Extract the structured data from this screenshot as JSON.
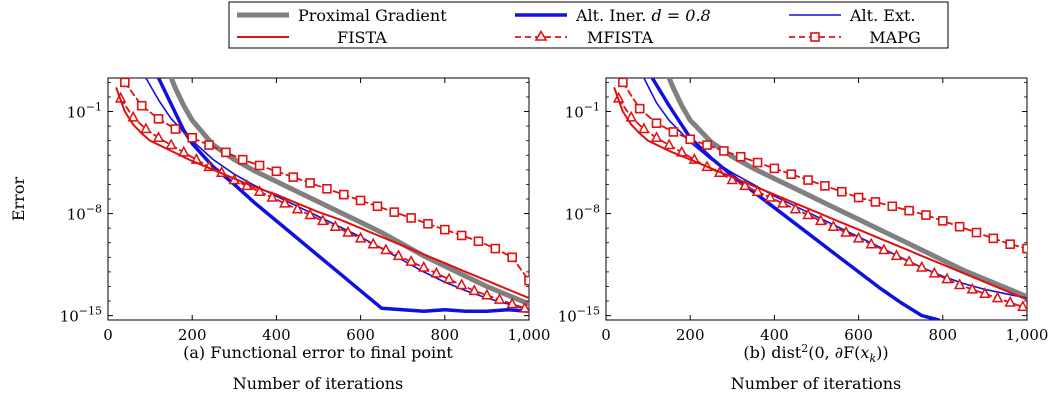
{
  "legend": [
    {
      "name": "Proximal Gradient",
      "color": "#808080",
      "width": 5,
      "dash": "",
      "marker": ""
    },
    {
      "name": "Alt. Iner. d = 0.8",
      "color": "#1010e0",
      "width": 3.5,
      "dash": "",
      "marker": ""
    },
    {
      "name": "Alt. Ext.",
      "color": "#1010e0",
      "width": 1.6,
      "dash": "",
      "marker": ""
    },
    {
      "name": "FISTA",
      "color": "#e01010",
      "width": 2,
      "dash": "",
      "marker": ""
    },
    {
      "name": "MFISTA",
      "color": "#e01010",
      "width": 1.8,
      "dash": "6 4",
      "marker": "triangle"
    },
    {
      "name": "MAPG",
      "color": "#e01010",
      "width": 1.8,
      "dash": "6 4",
      "marker": "square"
    }
  ],
  "legend_inline": {
    "iner_prefix": "Alt. Iner. ",
    "iner_param": "d = 0.8"
  },
  "chart_data": [
    {
      "type": "line",
      "caption": "(a) Functional error to final point",
      "xlabel": "Number of iterations",
      "ylabel": "Error",
      "yscale": "log",
      "xlim": [
        0,
        1000
      ],
      "ylim_exp": [
        -15.3,
        1.3
      ],
      "xticks": [
        0,
        200,
        400,
        600,
        800,
        1000
      ],
      "xtick_labels": [
        "0",
        "200",
        "400",
        "600",
        "800",
        "1,000"
      ],
      "yticks_exp": [
        -1,
        -8,
        -15
      ],
      "ytick_labels": [
        "10",
        "10",
        "10"
      ],
      "ytick_sups": [
        "−1",
        "−8",
        "−15"
      ],
      "series": [
        {
          "name": "Proximal Gradient",
          "x": [
            150,
            160,
            170,
            180,
            200,
            250,
            300,
            350,
            400,
            450,
            500,
            550,
            600,
            650,
            700,
            750,
            800,
            850,
            900,
            950,
            1000
          ],
          "y_exp": [
            1.3,
            0.6,
            0,
            -0.6,
            -1.6,
            -3.3,
            -4.3,
            -5.1,
            -5.8,
            -6.5,
            -7.2,
            -7.9,
            -8.6,
            -9.3,
            -10.1,
            -10.9,
            -11.6,
            -12.3,
            -13.0,
            -13.6,
            -14.2
          ]
        },
        {
          "name": "Alt. Iner. d = 0.8",
          "x": [
            120,
            150,
            180,
            200,
            250,
            300,
            350,
            400,
            450,
            500,
            550,
            600,
            650,
            700,
            750,
            800,
            850,
            900,
            950,
            1000
          ],
          "y_exp": [
            1.3,
            -0.5,
            -2.3,
            -3.2,
            -4.8,
            -6.0,
            -7.3,
            -8.5,
            -9.7,
            -10.9,
            -12.1,
            -13.3,
            -14.5,
            -14.6,
            -14.7,
            -14.6,
            -14.7,
            -14.7,
            -14.6,
            -14.7
          ]
        },
        {
          "name": "Alt. Ext.",
          "x": [
            90,
            120,
            150,
            200,
            250,
            300,
            350,
            400,
            450,
            500,
            550,
            600,
            650,
            700,
            750,
            800,
            850,
            900,
            950,
            1000
          ],
          "y_exp": [
            1.3,
            -0.2,
            -1.5,
            -3.0,
            -4.3,
            -5.3,
            -6.1,
            -6.8,
            -7.5,
            -8.2,
            -8.9,
            -9.6,
            -10.4,
            -11.2,
            -12.0,
            -12.7,
            -13.3,
            -13.8,
            -14.2,
            -14.6
          ]
        },
        {
          "name": "FISTA",
          "x": [
            20,
            40,
            60,
            80,
            100,
            150,
            200,
            250,
            300,
            350,
            400,
            450,
            500,
            550,
            600,
            650,
            700,
            750,
            800,
            850,
            900,
            950,
            1000
          ],
          "y_exp": [
            0.6,
            -1.0,
            -1.9,
            -2.5,
            -3.0,
            -3.7,
            -4.4,
            -5.0,
            -5.6,
            -6.2,
            -6.7,
            -7.3,
            -7.9,
            -8.4,
            -9.0,
            -9.6,
            -10.2,
            -10.8,
            -11.4,
            -12.0,
            -12.6,
            -13.2,
            -13.8
          ]
        },
        {
          "name": "MFISTA",
          "x": [
            30,
            60,
            90,
            120,
            150,
            180,
            210,
            240,
            270,
            300,
            330,
            360,
            390,
            420,
            450,
            480,
            510,
            540,
            570,
            600,
            630,
            660,
            690,
            720,
            750,
            780,
            810,
            840,
            870,
            900,
            930,
            960,
            990
          ],
          "y_exp": [
            -0.1,
            -1.4,
            -2.2,
            -2.8,
            -3.3,
            -3.8,
            -4.3,
            -4.8,
            -5.2,
            -5.7,
            -6.1,
            -6.5,
            -6.9,
            -7.3,
            -7.7,
            -8.1,
            -8.5,
            -8.9,
            -9.3,
            -9.7,
            -10.1,
            -10.5,
            -10.9,
            -11.3,
            -11.7,
            -12.1,
            -12.5,
            -12.9,
            -13.3,
            -13.6,
            -13.9,
            -14.2,
            -14.5
          ]
        },
        {
          "name": "MAPG",
          "x": [
            40,
            80,
            120,
            160,
            200,
            240,
            280,
            320,
            360,
            400,
            440,
            480,
            520,
            560,
            600,
            640,
            680,
            720,
            760,
            800,
            840,
            880,
            920,
            960,
            1000
          ],
          "y_exp": [
            1.0,
            -0.6,
            -1.5,
            -2.2,
            -2.8,
            -3.3,
            -3.8,
            -4.3,
            -4.7,
            -5.1,
            -5.5,
            -5.9,
            -6.3,
            -6.7,
            -7.1,
            -7.5,
            -7.9,
            -8.3,
            -8.7,
            -9.1,
            -9.5,
            -9.9,
            -10.4,
            -11.0,
            -12.6
          ]
        }
      ]
    },
    {
      "type": "line",
      "caption": "(b) dist²(0, ∂F(x_k))",
      "caption_parts": {
        "pre": "(b) dist",
        "sup": "2",
        "mid": "(0, ∂F(",
        "var": "x",
        "sub": "k",
        "post": "))"
      },
      "xlabel": "Number of iterations",
      "ylabel": "",
      "yscale": "log",
      "xlim": [
        0,
        1000
      ],
      "ylim_exp": [
        -15.3,
        1.3
      ],
      "xticks": [
        0,
        200,
        400,
        600,
        800,
        1000
      ],
      "xtick_labels": [
        "0",
        "200",
        "400",
        "600",
        "800",
        "1,000"
      ],
      "yticks_exp": [
        -1,
        -8,
        -15
      ],
      "ytick_labels": [
        "10",
        "10",
        "10"
      ],
      "ytick_sups": [
        "−1",
        "−8",
        "−15"
      ],
      "series": [
        {
          "name": "Proximal Gradient",
          "x": [
            150,
            160,
            170,
            180,
            200,
            250,
            300,
            350,
            400,
            450,
            500,
            550,
            600,
            650,
            700,
            750,
            800,
            850,
            900,
            950,
            1000
          ],
          "y_exp": [
            1.3,
            0.6,
            0,
            -0.6,
            -1.6,
            -3.1,
            -4.1,
            -4.9,
            -5.6,
            -6.3,
            -7.0,
            -7.7,
            -8.4,
            -9.1,
            -9.8,
            -10.5,
            -11.2,
            -11.9,
            -12.5,
            -13.1,
            -13.7
          ]
        },
        {
          "name": "Alt. Iner. d = 0.8",
          "x": [
            110,
            150,
            200,
            250,
            300,
            350,
            400,
            450,
            500,
            550,
            600,
            650,
            700,
            750,
            790
          ],
          "y_exp": [
            1.3,
            -0.6,
            -2.8,
            -4.2,
            -5.4,
            -6.5,
            -7.6,
            -8.7,
            -9.8,
            -10.9,
            -12.0,
            -13.1,
            -14.1,
            -15.0,
            -15.3
          ]
        },
        {
          "name": "Alt. Ext.",
          "x": [
            90,
            120,
            150,
            200,
            250,
            300,
            350,
            400,
            450,
            500,
            550,
            600,
            650,
            700,
            750,
            800,
            850,
            900,
            950,
            1000
          ],
          "y_exp": [
            1.3,
            -0.4,
            -1.6,
            -3.1,
            -4.3,
            -5.2,
            -6.0,
            -6.8,
            -7.5,
            -8.2,
            -8.9,
            -9.6,
            -10.3,
            -11.0,
            -11.7,
            -12.3,
            -12.8,
            -13.2,
            -13.5,
            -13.8
          ]
        },
        {
          "name": "FISTA",
          "x": [
            20,
            40,
            60,
            80,
            100,
            150,
            200,
            250,
            300,
            350,
            400,
            450,
            500,
            550,
            600,
            650,
            700,
            750,
            800,
            850,
            900,
            950,
            1000
          ],
          "y_exp": [
            0.6,
            -1.0,
            -1.9,
            -2.5,
            -3.0,
            -3.7,
            -4.3,
            -4.9,
            -5.5,
            -6.1,
            -6.7,
            -7.3,
            -7.9,
            -8.5,
            -9.1,
            -9.7,
            -10.3,
            -10.9,
            -11.5,
            -12.1,
            -12.7,
            -13.3,
            -13.9
          ]
        },
        {
          "name": "MFISTA",
          "x": [
            30,
            60,
            90,
            120,
            150,
            180,
            210,
            240,
            270,
            300,
            330,
            360,
            390,
            420,
            450,
            480,
            510,
            540,
            570,
            600,
            630,
            660,
            690,
            720,
            750,
            780,
            810,
            840,
            870,
            900,
            930,
            960,
            990
          ],
          "y_exp": [
            -0.1,
            -1.4,
            -2.2,
            -2.8,
            -3.3,
            -3.8,
            -4.3,
            -4.8,
            -5.2,
            -5.7,
            -6.1,
            -6.5,
            -6.9,
            -7.3,
            -7.7,
            -8.1,
            -8.5,
            -8.9,
            -9.3,
            -9.7,
            -10.1,
            -10.5,
            -10.9,
            -11.3,
            -11.7,
            -12.1,
            -12.5,
            -12.9,
            -13.2,
            -13.5,
            -13.8,
            -14.1,
            -14.4
          ]
        },
        {
          "name": "MAPG",
          "x": [
            40,
            80,
            120,
            160,
            200,
            240,
            280,
            320,
            360,
            400,
            440,
            480,
            520,
            560,
            600,
            640,
            680,
            720,
            760,
            800,
            840,
            880,
            920,
            960,
            1000
          ],
          "y_exp": [
            1.0,
            -0.8,
            -1.8,
            -2.4,
            -2.9,
            -3.3,
            -3.7,
            -4.1,
            -4.5,
            -4.9,
            -5.3,
            -5.7,
            -6.1,
            -6.5,
            -6.9,
            -7.2,
            -7.5,
            -7.8,
            -8.1,
            -8.5,
            -8.9,
            -9.3,
            -9.7,
            -10.1,
            -10.4
          ]
        }
      ]
    }
  ]
}
